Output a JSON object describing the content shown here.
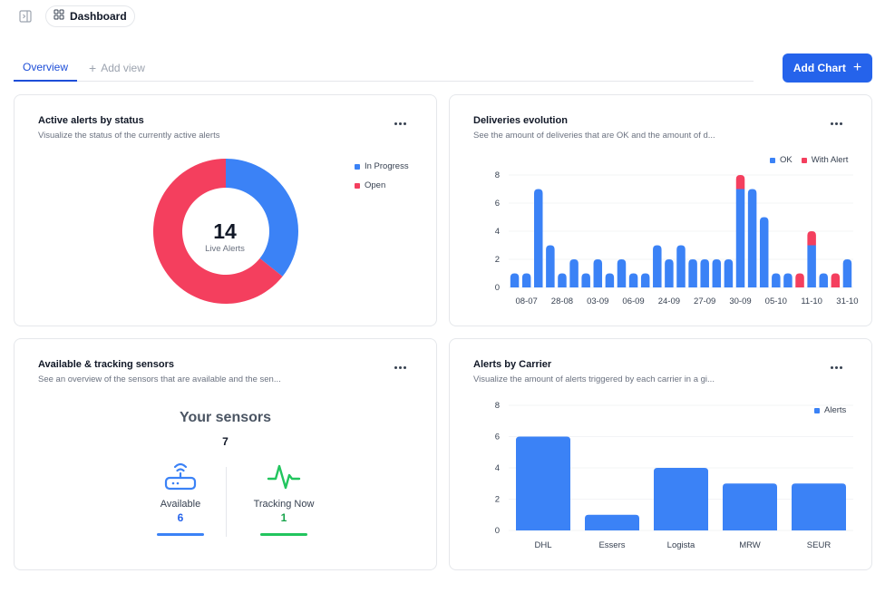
{
  "header": {
    "breadcrumb": "Dashboard"
  },
  "tabs": {
    "active": "Overview",
    "add": "Add view"
  },
  "toolbar": {
    "add_chart": "Add Chart"
  },
  "colors": {
    "blue": "#3b82f6",
    "red": "#f43f5e",
    "green": "#22c55e",
    "accent": "#2563eb"
  },
  "alerts_status": {
    "title": "Active alerts by status",
    "subtitle": "Visualize the status of the currently active alerts",
    "total": "14",
    "total_label": "Live Alerts",
    "legend": [
      "In Progress",
      "Open"
    ]
  },
  "deliveries": {
    "title": "Deliveries evolution",
    "subtitle": "See the amount of deliveries that are OK and the amount of d...",
    "legend": [
      "OK",
      "With Alert"
    ]
  },
  "sensors": {
    "title": "Available & tracking sensors",
    "subtitle": "See an overview of the sensors that are available and the sen...",
    "heading": "Your sensors",
    "total": "7",
    "available_label": "Available",
    "available_value": "6",
    "tracking_label": "Tracking Now",
    "tracking_value": "1"
  },
  "carriers": {
    "title": "Alerts by Carrier",
    "subtitle": "Visualize the amount of alerts triggered by each carrier in a gi...",
    "legend": [
      "Alerts"
    ]
  },
  "chart_data": [
    {
      "type": "pie",
      "categories": [
        "In Progress",
        "Open"
      ],
      "values": [
        5,
        9
      ],
      "center_value": 14,
      "center_label": "Live Alerts"
    },
    {
      "type": "bar",
      "stacked": true,
      "tick_labels": [
        "08-07",
        "28-08",
        "03-09",
        "06-09",
        "24-09",
        "27-09",
        "30-09",
        "05-10",
        "11-10",
        "31-10"
      ],
      "series": [
        {
          "name": "OK",
          "values": [
            1,
            1,
            7,
            3,
            1,
            2,
            1,
            2,
            1,
            2,
            1,
            1,
            3,
            2,
            3,
            2,
            2,
            2,
            2,
            7,
            7,
            5,
            1,
            1,
            0,
            3,
            1,
            0,
            2
          ]
        },
        {
          "name": "With Alert",
          "values": [
            0,
            0,
            0,
            0,
            0,
            0,
            0,
            0,
            0,
            0,
            0,
            0,
            0,
            0,
            0,
            0,
            0,
            0,
            0,
            1,
            0,
            0,
            0,
            0,
            1,
            1,
            0,
            1,
            0
          ]
        }
      ],
      "ylim": [
        0,
        8
      ],
      "yticks": [
        0,
        2,
        4,
        6,
        8
      ],
      "legend": "top-right",
      "grid": true
    },
    {
      "type": "bar",
      "categories": [
        "DHL",
        "Essers",
        "Logista",
        "MRW",
        "SEUR"
      ],
      "series": [
        {
          "name": "Alerts",
          "values": [
            6,
            1,
            4,
            3,
            3
          ]
        }
      ],
      "ylim": [
        0,
        8
      ],
      "yticks": [
        0,
        2,
        4,
        6,
        8
      ],
      "legend": "top-right",
      "grid": true
    }
  ]
}
